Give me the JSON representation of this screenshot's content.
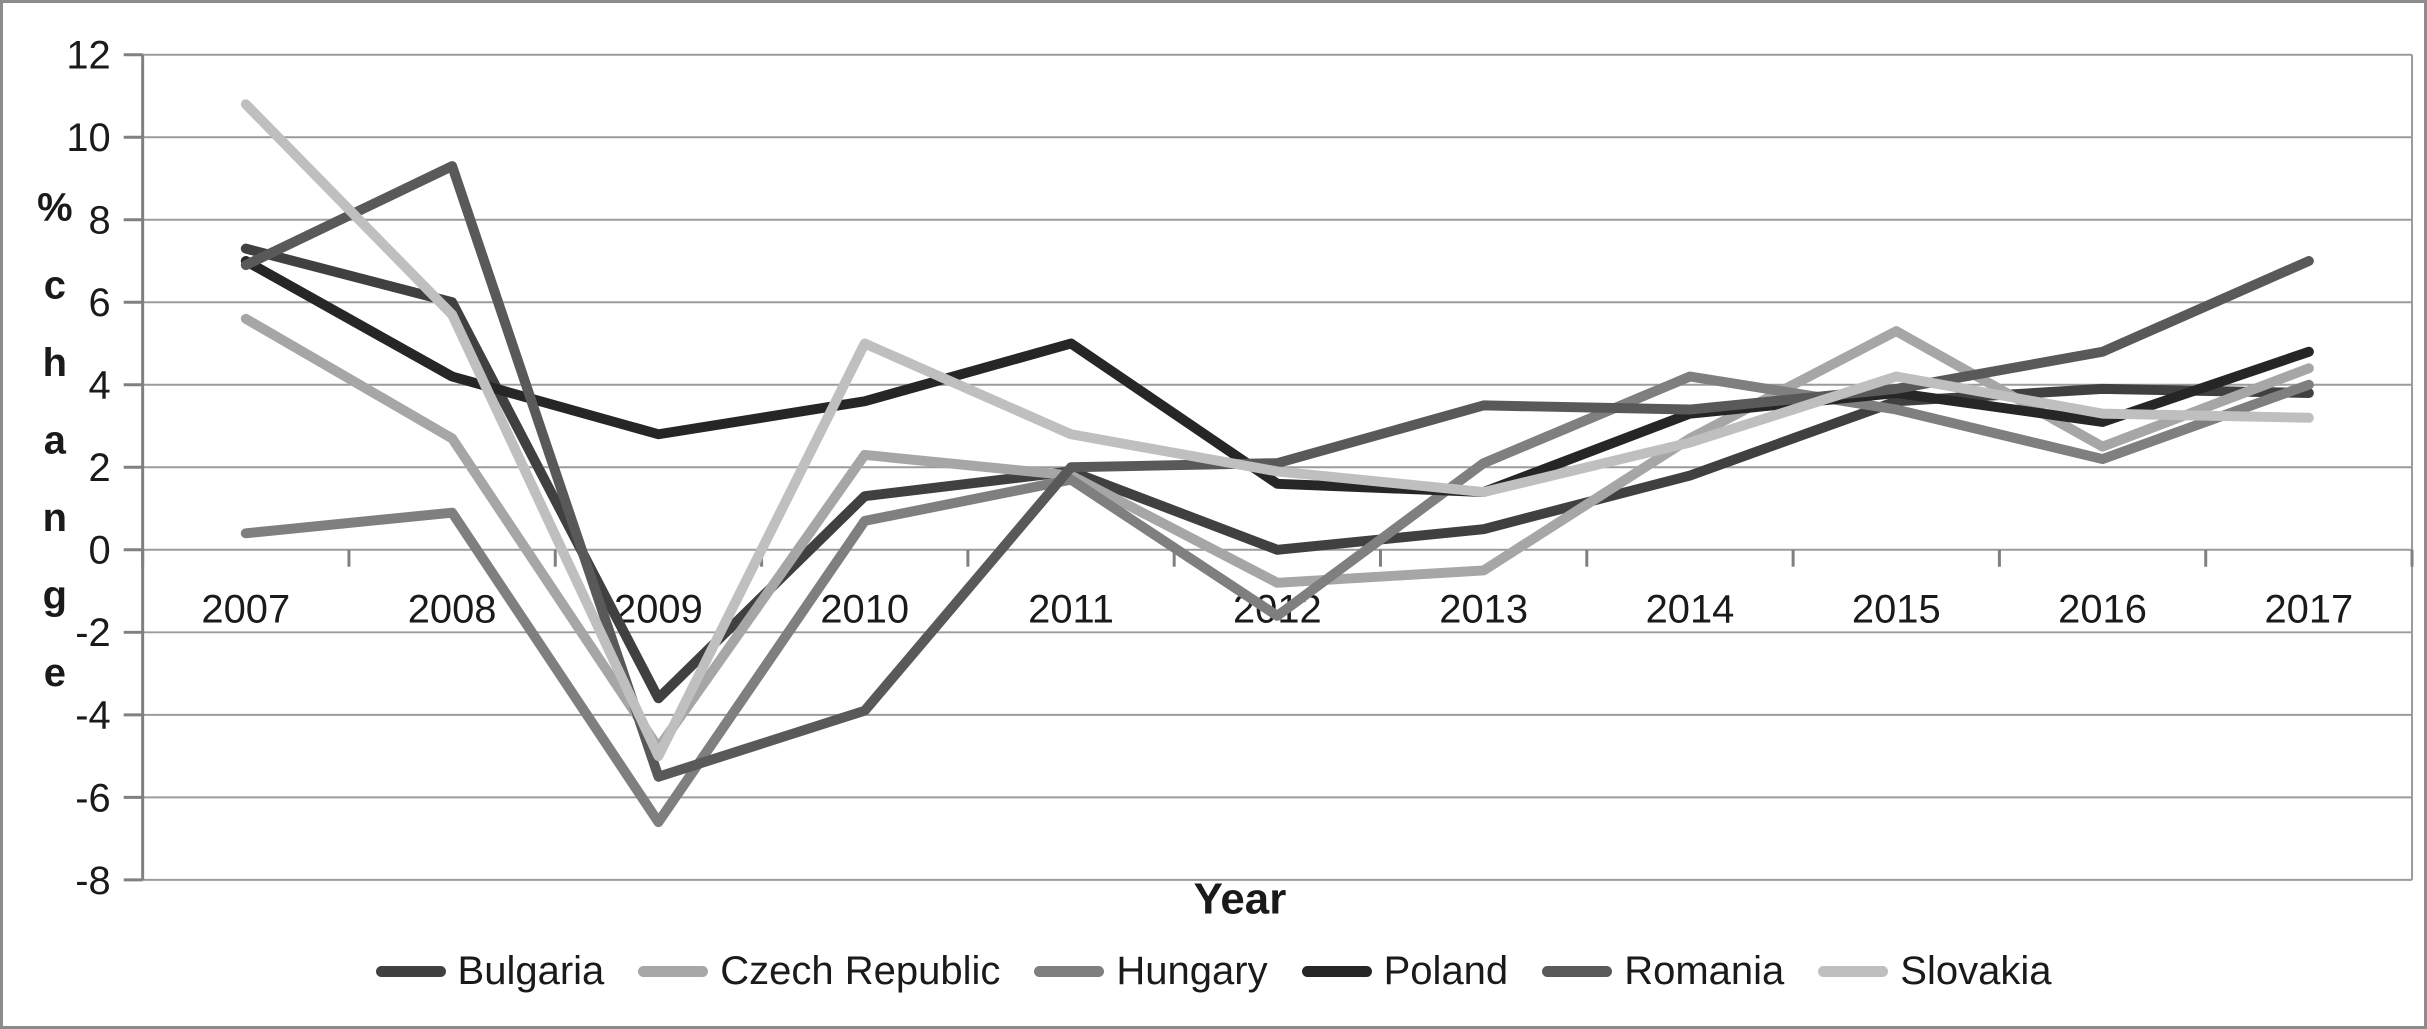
{
  "chart_data": {
    "type": "line",
    "title": "",
    "xlabel": "Year",
    "ylabel": "% change",
    "categories": [
      "2007",
      "2008",
      "2009",
      "2010",
      "2011",
      "2012",
      "2013",
      "2014",
      "2015",
      "2016",
      "2017"
    ],
    "y_ticks": [
      12,
      10,
      8,
      6,
      4,
      2,
      0,
      -2,
      -4,
      -6,
      -8
    ],
    "ylim": [
      -8,
      12
    ],
    "grid": "horizontal",
    "legend_position": "bottom",
    "series": [
      {
        "name": "Bulgaria",
        "color": "#404040",
        "values": [
          7.3,
          6.0,
          -3.6,
          1.3,
          1.9,
          0.0,
          0.5,
          1.8,
          3.6,
          3.9,
          3.8
        ]
      },
      {
        "name": "Czech Republic",
        "color": "#a6a6a6",
        "values": [
          5.6,
          2.7,
          -4.8,
          2.3,
          1.8,
          -0.8,
          -0.5,
          2.7,
          5.3,
          2.5,
          4.4
        ]
      },
      {
        "name": "Hungary",
        "color": "#7f7f7f",
        "values": [
          0.4,
          0.9,
          -6.6,
          0.7,
          1.7,
          -1.6,
          2.1,
          4.2,
          3.4,
          2.2,
          4.0
        ]
      },
      {
        "name": "Poland",
        "color": "#262626",
        "values": [
          7.0,
          4.2,
          2.8,
          3.6,
          5.0,
          1.6,
          1.4,
          3.3,
          3.8,
          3.1,
          4.8
        ]
      },
      {
        "name": "Romania",
        "color": "#595959",
        "values": [
          6.9,
          9.3,
          -5.5,
          -3.9,
          2.0,
          2.1,
          3.5,
          3.4,
          3.9,
          4.8,
          7.0
        ]
      },
      {
        "name": "Slovakia",
        "color": "#bfbfbf",
        "values": [
          10.8,
          5.7,
          -5.0,
          5.0,
          2.8,
          1.9,
          1.4,
          2.6,
          4.2,
          3.3,
          3.2
        ]
      }
    ],
    "colors": {
      "axis": "#808080",
      "grid": "#9b9b9b",
      "text": "#1a1a1a",
      "frame": "#8c8c8c",
      "background": "#ffffff"
    }
  }
}
